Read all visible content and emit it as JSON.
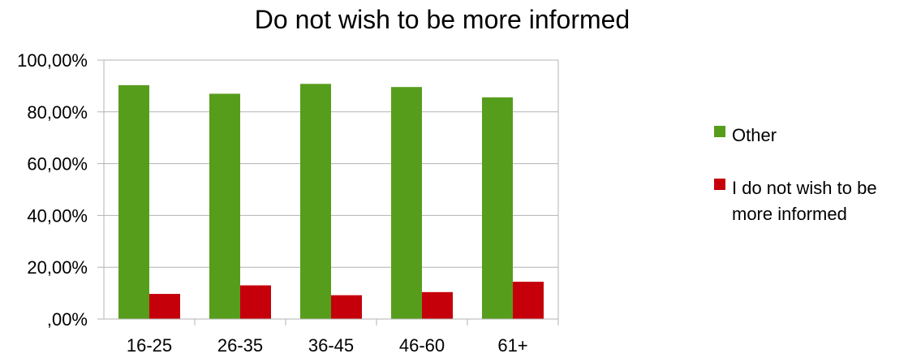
{
  "chart_data": {
    "type": "bar",
    "title": "Do not wish to be more informed",
    "categories": [
      "16-25",
      "26-35",
      "36-45",
      "46-60",
      "61+"
    ],
    "series": [
      {
        "name": "Other",
        "color": "#579d1c",
        "values": [
          90.3,
          87.0,
          90.8,
          89.6,
          85.6
        ]
      },
      {
        "name": "I do not wish to be more informed",
        "color": "#c5000b",
        "values": [
          9.7,
          13.0,
          9.2,
          10.4,
          14.4
        ]
      }
    ],
    "ylim": [
      0,
      100
    ],
    "yticks": [
      0,
      20,
      40,
      60,
      80,
      100
    ],
    "ytick_labels": [
      ",00%",
      "20,00%",
      "40,00%",
      "60,00%",
      "80,00%",
      "100,00%"
    ],
    "legend_labels": [
      [
        "Other"
      ],
      [
        "I do not wish to be",
        "more informed"
      ]
    ],
    "grid": true,
    "legend": "right"
  }
}
